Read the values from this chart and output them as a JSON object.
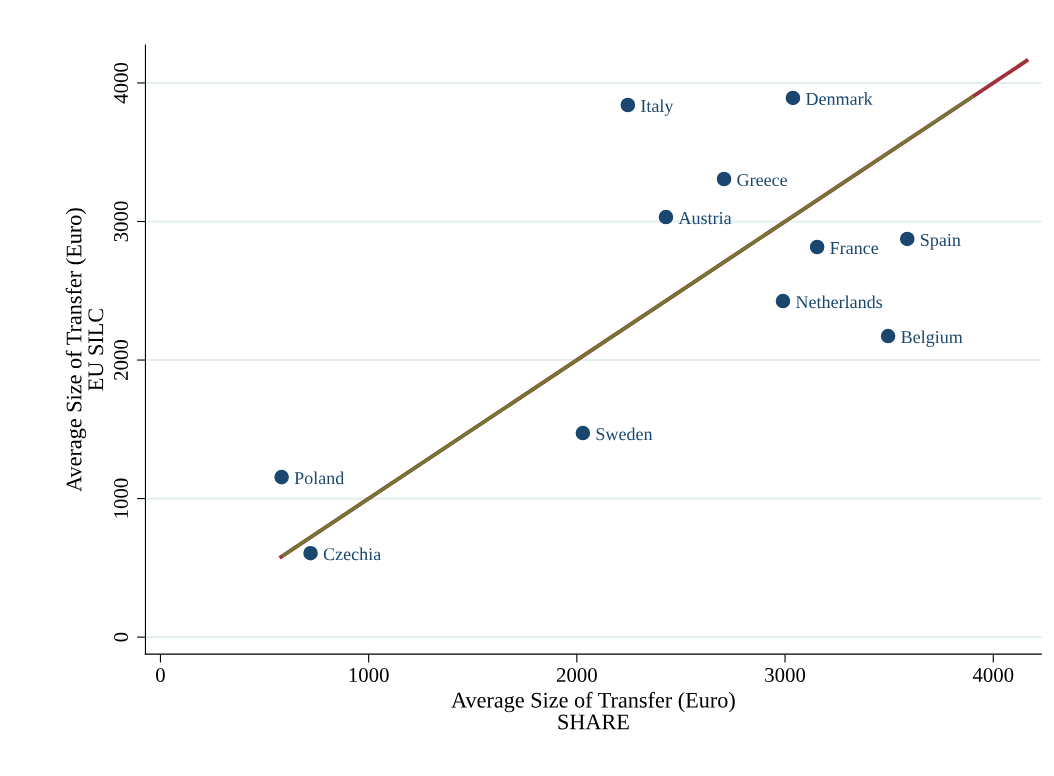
{
  "chart_data": {
    "type": "scatter",
    "xlabel": "Average Size of Transfer (Euro)\nSHARE",
    "ylabel": "Average Size of Transfer (Euro)\nEU SILC",
    "series": [
      {
        "color": "#1a476f",
        "marker": "circle",
        "x": [
          2245,
          3038,
          2707,
          2428,
          3154,
          3587,
          2990,
          3495,
          2029,
          582,
          721
        ],
        "values": [
          3841,
          3892,
          3307,
          3032,
          2816,
          2874,
          2426,
          2173,
          1473,
          1155,
          606
        ]
      },
      {
        "type": "line",
        "color": "#a0303a",
        "marker": "none",
        "x": [
          580,
          4160
        ],
        "values": [
          580,
          4160
        ]
      },
      {
        "type": "line",
        "color": "#6b7d2e",
        "marker": "none",
        "x": [
          590,
          3900
        ],
        "values": [
          590,
          3900
        ]
      }
    ],
    "annotations": [
      {
        "text": "Italy",
        "x": 2245,
        "y": 3841
      },
      {
        "text": "Denmark",
        "x": 3038,
        "y": 3892
      },
      {
        "text": "Greece",
        "x": 2707,
        "y": 3307
      },
      {
        "text": "Austria",
        "x": 2428,
        "y": 3032
      },
      {
        "text": "France",
        "x": 3154,
        "y": 2816
      },
      {
        "text": "Spain",
        "x": 3587,
        "y": 2874
      },
      {
        "text": "Netherlands",
        "x": 2990,
        "y": 2426
      },
      {
        "text": "Belgium",
        "x": 3495,
        "y": 2173
      },
      {
        "text": "Sweden",
        "x": 2029,
        "y": 1473
      },
      {
        "text": "Poland",
        "x": 582,
        "y": 1155
      },
      {
        "text": "Czechia",
        "x": 721,
        "y": 606
      }
    ],
    "xlim": [
      -72,
      4231
    ],
    "ylim": [
      -123,
      4274
    ],
    "xticks": [
      0,
      1000,
      2000,
      3000,
      4000
    ],
    "yticks": [
      0,
      1000,
      2000,
      3000,
      4000
    ],
    "grid": "y",
    "legend": false
  }
}
